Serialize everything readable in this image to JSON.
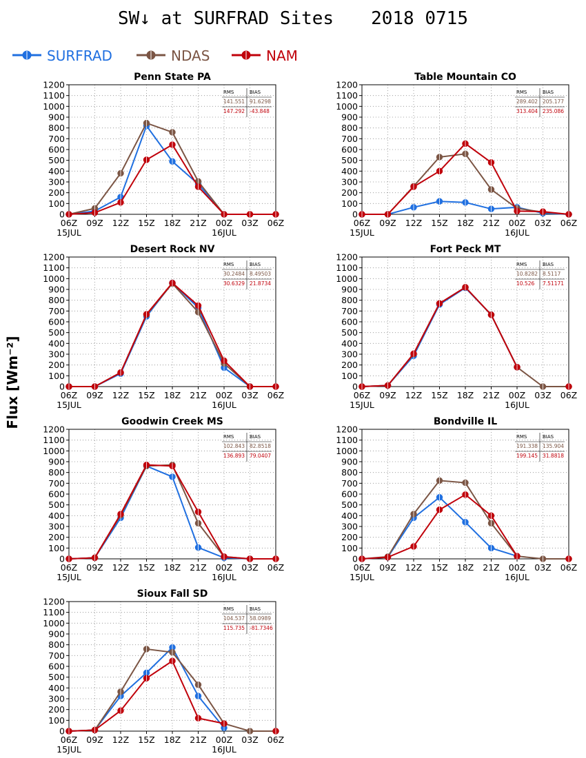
{
  "title_main": "SW↓ at SURFRAD Sites",
  "title_date": "2018 0715",
  "y_axis_label": "Flux [Wm⁻²]",
  "y_axis_unit_sup": "-2",
  "legend": [
    {
      "name": "SURFRAD",
      "color": "#1f6fe0"
    },
    {
      "name": "NDAS",
      "color": "#7b5544"
    },
    {
      "name": "NAM",
      "color": "#c0000a"
    }
  ],
  "chart_data": [
    {
      "type": "line",
      "title": "Penn State PA",
      "categories": [
        "06Z",
        "09Z",
        "12Z",
        "15Z",
        "18Z",
        "21Z",
        "00Z",
        "03Z",
        "06Z"
      ],
      "date_labels": [
        {
          "index": 0,
          "text": "15JUL"
        },
        {
          "index": 6,
          "text": "16JUL"
        }
      ],
      "yticks": [
        0,
        100,
        200,
        300,
        400,
        500,
        600,
        700,
        800,
        900,
        1000,
        1100,
        1200
      ],
      "ylim": [
        0,
        1200
      ],
      "grid": true,
      "stats": {
        "headers": [
          "RMS",
          "BIAS"
        ],
        "rows": [
          {
            "series": "NDAS",
            "rms": "141.551",
            "bias": "91.6298"
          },
          {
            "series": "NAM",
            "rms": "147.292",
            "bias": "-43.848"
          }
        ]
      },
      "series": [
        {
          "name": "SURFRAD",
          "values": [
            0,
            30,
            160,
            820,
            490,
            280,
            0,
            null,
            null
          ]
        },
        {
          "name": "NDAS",
          "values": [
            0,
            55,
            380,
            845,
            760,
            305,
            0,
            0,
            0
          ]
        },
        {
          "name": "NAM",
          "values": [
            0,
            15,
            110,
            505,
            645,
            255,
            0,
            0,
            0
          ]
        }
      ]
    },
    {
      "type": "line",
      "title": "Table Mountain CO",
      "categories": [
        "06Z",
        "09Z",
        "12Z",
        "15Z",
        "18Z",
        "21Z",
        "00Z",
        "03Z",
        "06Z"
      ],
      "date_labels": [
        {
          "index": 0,
          "text": "15JUL"
        },
        {
          "index": 6,
          "text": "16JUL"
        }
      ],
      "yticks": [
        0,
        100,
        200,
        300,
        400,
        500,
        600,
        700,
        800,
        900,
        1000,
        1100,
        1200
      ],
      "ylim": [
        0,
        1200
      ],
      "grid": true,
      "stats": {
        "headers": [
          "RMS",
          "BIAS"
        ],
        "rows": [
          {
            "series": "NDAS",
            "rms": "289.402",
            "bias": "205.177"
          },
          {
            "series": "NAM",
            "rms": "313.404",
            "bias": "235.086"
          }
        ]
      },
      "series": [
        {
          "name": "SURFRAD",
          "values": [
            0,
            0,
            65,
            120,
            110,
            50,
            65,
            10,
            0
          ]
        },
        {
          "name": "NDAS",
          "values": [
            0,
            0,
            260,
            530,
            560,
            230,
            55,
            20,
            0
          ]
        },
        {
          "name": "NAM",
          "values": [
            0,
            0,
            255,
            400,
            655,
            480,
            30,
            25,
            0
          ]
        }
      ]
    },
    {
      "type": "line",
      "title": "Desert Rock NV",
      "categories": [
        "06Z",
        "09Z",
        "12Z",
        "15Z",
        "18Z",
        "21Z",
        "00Z",
        "03Z",
        "06Z"
      ],
      "date_labels": [
        {
          "index": 0,
          "text": "15JUL"
        },
        {
          "index": 6,
          "text": "16JUL"
        }
      ],
      "yticks": [
        0,
        100,
        200,
        300,
        400,
        500,
        600,
        700,
        800,
        900,
        1000,
        1100,
        1200
      ],
      "ylim": [
        0,
        1200
      ],
      "grid": true,
      "stats": {
        "headers": [
          "RMS",
          "BIAS"
        ],
        "rows": [
          {
            "series": "NDAS",
            "rms": "30.2484",
            "bias": "8.49503"
          },
          {
            "series": "NAM",
            "rms": "30.6329",
            "bias": "21.8734"
          }
        ]
      },
      "series": [
        {
          "name": "SURFRAD",
          "values": [
            0,
            0,
            120,
            650,
            960,
            730,
            175,
            0,
            null
          ]
        },
        {
          "name": "NDAS",
          "values": [
            0,
            0,
            130,
            665,
            955,
            690,
            215,
            0,
            0
          ]
        },
        {
          "name": "NAM",
          "values": [
            0,
            0,
            130,
            670,
            960,
            750,
            240,
            0,
            0
          ]
        }
      ]
    },
    {
      "type": "line",
      "title": "Fort Peck MT",
      "categories": [
        "06Z",
        "09Z",
        "12Z",
        "15Z",
        "18Z",
        "21Z",
        "00Z",
        "03Z",
        "06Z"
      ],
      "date_labels": [
        {
          "index": 0,
          "text": "15JUL"
        },
        {
          "index": 6,
          "text": "16JUL"
        }
      ],
      "yticks": [
        0,
        100,
        200,
        300,
        400,
        500,
        600,
        700,
        800,
        900,
        1000,
        1100,
        1200
      ],
      "ylim": [
        0,
        1200
      ],
      "grid": true,
      "stats": {
        "headers": [
          "RMS",
          "BIAS"
        ],
        "rows": [
          {
            "series": "NDAS",
            "rms": "10.8282",
            "bias": "8.5117"
          },
          {
            "series": "NAM",
            "rms": "10.526",
            "bias": "7.51171"
          }
        ]
      },
      "series": [
        {
          "name": "SURFRAD",
          "values": [
            0,
            10,
            285,
            760,
            915,
            665,
            180,
            null,
            null
          ]
        },
        {
          "name": "NDAS",
          "values": [
            0,
            10,
            300,
            770,
            920,
            665,
            180,
            0,
            0
          ]
        },
        {
          "name": "NAM",
          "values": [
            0,
            10,
            305,
            770,
            920,
            665,
            180,
            null,
            0
          ]
        }
      ]
    },
    {
      "type": "line",
      "title": "Goodwin Creek MS",
      "categories": [
        "06Z",
        "09Z",
        "12Z",
        "15Z",
        "18Z",
        "21Z",
        "00Z",
        "03Z",
        "06Z"
      ],
      "date_labels": [
        {
          "index": 0,
          "text": "15JUL"
        },
        {
          "index": 6,
          "text": "16JUL"
        }
      ],
      "yticks": [
        0,
        100,
        200,
        300,
        400,
        500,
        600,
        700,
        800,
        900,
        1000,
        1100,
        1200
      ],
      "ylim": [
        0,
        1200
      ],
      "grid": true,
      "stats": {
        "headers": [
          "RMS",
          "BIAS"
        ],
        "rows": [
          {
            "series": "NDAS",
            "rms": "102.843",
            "bias": "82.8518"
          },
          {
            "series": "NAM",
            "rms": "136.893",
            "bias": "79.0407"
          }
        ]
      },
      "series": [
        {
          "name": "SURFRAD",
          "values": [
            0,
            10,
            380,
            860,
            760,
            105,
            10,
            0,
            null
          ]
        },
        {
          "name": "NDAS",
          "values": [
            0,
            10,
            405,
            860,
            870,
            330,
            20,
            0,
            0
          ]
        },
        {
          "name": "NAM",
          "values": [
            0,
            10,
            415,
            870,
            860,
            435,
            20,
            0,
            0
          ]
        }
      ]
    },
    {
      "type": "line",
      "title": "Bondville IL",
      "categories": [
        "06Z",
        "09Z",
        "12Z",
        "15Z",
        "18Z",
        "21Z",
        "00Z",
        "03Z",
        "06Z"
      ],
      "date_labels": [
        {
          "index": 0,
          "text": "15JUL"
        },
        {
          "index": 6,
          "text": "16JUL"
        }
      ],
      "yticks": [
        0,
        100,
        200,
        300,
        400,
        500,
        600,
        700,
        800,
        900,
        1000,
        1100,
        1200
      ],
      "ylim": [
        0,
        1200
      ],
      "grid": true,
      "stats": {
        "headers": [
          "RMS",
          "BIAS"
        ],
        "rows": [
          {
            "series": "NDAS",
            "rms": "191.338",
            "bias": "135.904"
          },
          {
            "series": "NAM",
            "rms": "199.145",
            "bias": "31.8818"
          }
        ]
      },
      "series": [
        {
          "name": "SURFRAD",
          "values": [
            0,
            15,
            380,
            570,
            340,
            100,
            25,
            null,
            null
          ]
        },
        {
          "name": "NDAS",
          "values": [
            0,
            20,
            415,
            725,
            705,
            330,
            25,
            0,
            0
          ]
        },
        {
          "name": "NAM",
          "values": [
            0,
            15,
            115,
            455,
            595,
            400,
            25,
            null,
            0
          ]
        }
      ]
    },
    {
      "type": "line",
      "title": "Sioux Fall SD",
      "categories": [
        "06Z",
        "09Z",
        "12Z",
        "15Z",
        "18Z",
        "21Z",
        "00Z",
        "03Z",
        "06Z"
      ],
      "date_labels": [
        {
          "index": 0,
          "text": "15JUL"
        },
        {
          "index": 6,
          "text": "16JUL"
        }
      ],
      "yticks": [
        0,
        100,
        200,
        300,
        400,
        500,
        600,
        700,
        800,
        900,
        1000,
        1100,
        1200
      ],
      "ylim": [
        0,
        1200
      ],
      "grid": true,
      "stats": {
        "headers": [
          "RMS",
          "BIAS"
        ],
        "rows": [
          {
            "series": "NDAS",
            "rms": "104.537",
            "bias": "58.0989"
          },
          {
            "series": "NAM",
            "rms": "115.735",
            "bias": "-81.7346"
          }
        ]
      },
      "series": [
        {
          "name": "SURFRAD",
          "values": [
            0,
            10,
            325,
            540,
            775,
            325,
            30,
            null,
            null
          ]
        },
        {
          "name": "NDAS",
          "values": [
            0,
            10,
            365,
            760,
            730,
            430,
            70,
            0,
            0
          ]
        },
        {
          "name": "NAM",
          "values": [
            0,
            10,
            190,
            490,
            650,
            120,
            70,
            null,
            0
          ]
        }
      ]
    }
  ]
}
